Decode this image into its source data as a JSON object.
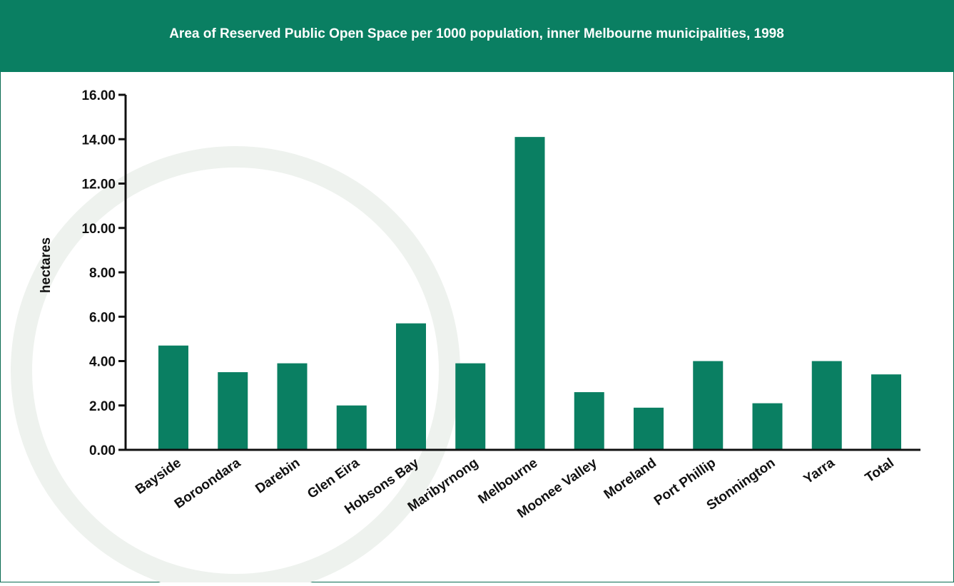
{
  "chart_data": {
    "type": "bar",
    "title": "Area of Reserved Public Open Space per 1000 population, inner Melbourne municipalities, 1998",
    "y_label": "hectares",
    "categories": [
      "Bayside",
      "Boroondara",
      "Darebin",
      "Glen Eira",
      "Hobsons Bay",
      "Maribyrnong",
      "Melbourne",
      "Moonee Valley",
      "Moreland",
      "Port Phillip",
      "Stonnington",
      "Yarra",
      "Total"
    ],
    "values": [
      4.7,
      3.5,
      3.9,
      2.0,
      5.7,
      3.9,
      14.1,
      2.6,
      1.9,
      4.0,
      2.1,
      4.0,
      3.4
    ],
    "color": "#0a7f62",
    "ylim": [
      0,
      16
    ],
    "yticks": [
      {
        "value": 0,
        "label": "0.00"
      },
      {
        "value": 2,
        "label": "2.00"
      },
      {
        "value": 4,
        "label": "4.00"
      },
      {
        "value": 6,
        "label": "6.00"
      },
      {
        "value": 8,
        "label": "8.00"
      },
      {
        "value": 10,
        "label": "10.00"
      },
      {
        "value": 12,
        "label": "12.00"
      },
      {
        "value": 14,
        "label": "14.00"
      },
      {
        "value": 16,
        "label": "16.00"
      }
    ]
  }
}
